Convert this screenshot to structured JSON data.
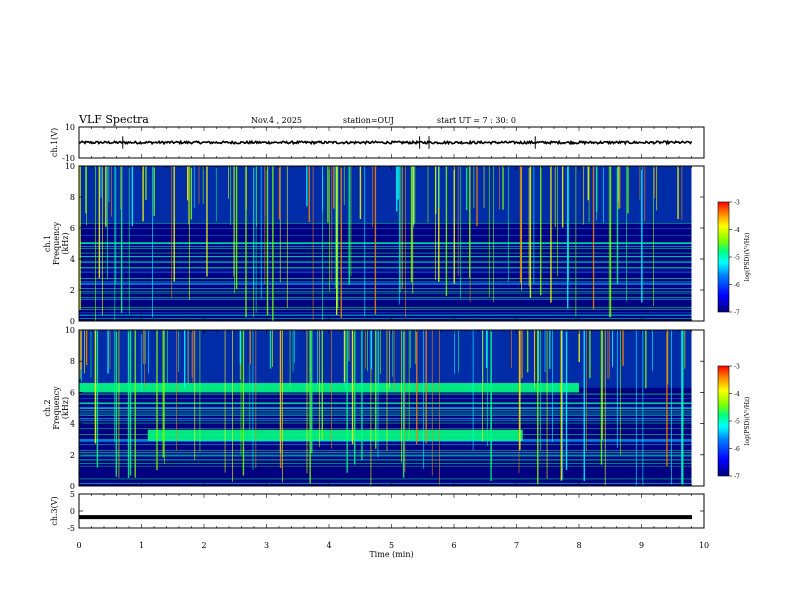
{
  "header": {
    "title": "VLF Spectra",
    "date": "Nov.4 , 2025",
    "station": "station=OUJ",
    "start_ut": "start UT = 7 : 30: 0"
  },
  "chart_data": [
    {
      "type": "line",
      "name": "ch1-waveform",
      "ylabel": "ch.1(V)",
      "ylim": [
        -10,
        10
      ],
      "yticks": [
        "10",
        "-10"
      ],
      "xlim": [
        0,
        10
      ],
      "trace_level": 0,
      "spikes_at_min": [
        0.7,
        5.45,
        5.6,
        7.3
      ]
    },
    {
      "type": "heatmap",
      "name": "ch1-spectrogram",
      "ylabel": "ch.1 Frequency (kHz)",
      "ylim": [
        0,
        10
      ],
      "yticks": [
        "0",
        "2",
        "4",
        "6",
        "8",
        "10"
      ],
      "xlim": [
        0,
        10
      ],
      "data_extent_min": 9.8,
      "colorbar": {
        "label": "log(PSD)(V²/Hz)",
        "range": [
          -7,
          -3
        ],
        "ticks": [
          "-3",
          "-4",
          "-5",
          "-6",
          "-7"
        ]
      }
    },
    {
      "type": "heatmap",
      "name": "ch2-spectrogram",
      "ylabel": "ch.2 Frequency (kHz)",
      "ylim": [
        0,
        10
      ],
      "yticks": [
        "0",
        "2",
        "4",
        "6",
        "8",
        "10"
      ],
      "xlim": [
        0,
        10
      ],
      "data_extent_min": 9.8,
      "bands": [
        {
          "t_start": 0,
          "t_end": 8.0,
          "f_low": 6.0,
          "f_high": 6.6
        },
        {
          "t_start": 1.1,
          "t_end": 7.1,
          "f_low": 2.9,
          "f_high": 3.6
        }
      ],
      "colorbar": {
        "label": "log(PSD)(V²/Hz)",
        "range": [
          -7,
          -3
        ],
        "ticks": [
          "-3",
          "-4",
          "-5",
          "-6",
          "-7"
        ]
      }
    },
    {
      "type": "line",
      "name": "ch3-waveform",
      "ylabel": "ch.3(V)",
      "ylim": [
        -5,
        5
      ],
      "yticks": [
        "5",
        "0",
        "-5"
      ],
      "xlim": [
        0,
        10
      ],
      "trace_level": -1.8
    }
  ],
  "xaxis": {
    "title": "Time (min)",
    "ticks": [
      "0",
      "1",
      "2",
      "3",
      "4",
      "5",
      "6",
      "7",
      "8",
      "9",
      "10"
    ]
  },
  "colors": {
    "background": "#000080",
    "colormap": [
      "#00007f",
      "#0000ff",
      "#0080ff",
      "#00ffff",
      "#00ff80",
      "#80ff00",
      "#ffff00",
      "#ff8000",
      "#ff0000"
    ]
  }
}
